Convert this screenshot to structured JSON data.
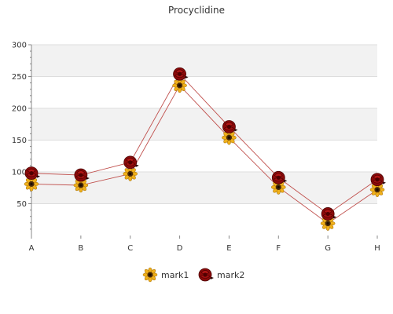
{
  "chart_data": {
    "type": "line",
    "title": "Procyclidine",
    "categories": [
      "A",
      "B",
      "C",
      "D",
      "E",
      "F",
      "G",
      "H"
    ],
    "series": [
      {
        "name": "mark1",
        "values": [
          81,
          79,
          97,
          236,
          154,
          76,
          19,
          72
        ],
        "marker": "sunflower-icon"
      },
      {
        "name": "mark2",
        "values": [
          98,
          95,
          115,
          254,
          171,
          91,
          34,
          88
        ],
        "marker": "rose-icon"
      }
    ],
    "yticks": [
      50,
      100,
      150,
      200,
      250,
      300
    ],
    "ylim": [
      0,
      300
    ],
    "grid": true,
    "legend_position": "bottom",
    "colors": {
      "line": "#c0504d",
      "band": "#f2f2f2",
      "grid": "#dddddd",
      "axis": "#888888"
    }
  }
}
